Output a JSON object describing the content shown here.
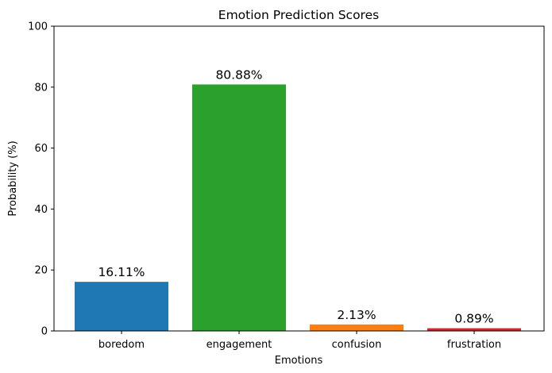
{
  "chart_data": {
    "type": "bar",
    "title": "Emotion Prediction Scores",
    "xlabel": "Emotions",
    "ylabel": "Probability (%)",
    "categories": [
      "boredom",
      "engagement",
      "confusion",
      "frustration"
    ],
    "values": [
      16.11,
      80.88,
      2.13,
      0.89
    ],
    "data_labels": [
      "16.11%",
      "80.88%",
      "2.13%",
      "0.89%"
    ],
    "colors": [
      "#1f77b4",
      "#2ca02c",
      "#ff7f0e",
      "#d62728"
    ],
    "ylim": [
      0,
      100
    ],
    "yticks": [
      0,
      20,
      40,
      60,
      80,
      100
    ],
    "grid": false,
    "legend": "none"
  }
}
